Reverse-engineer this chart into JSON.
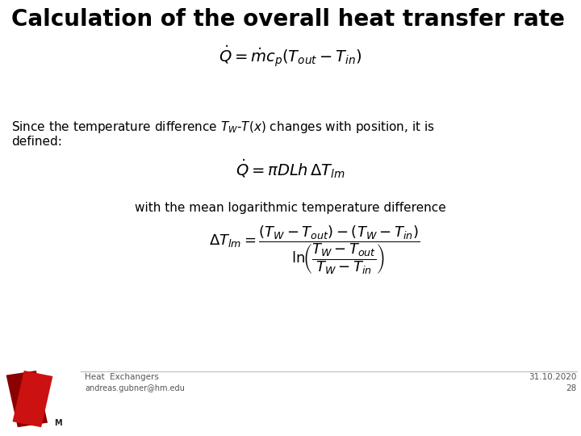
{
  "title": "Calculation of the overall heat transfer rate",
  "eq1": "$\\dot{Q} = \\dot{m}c_p\\left(T_{out} - T_{in}\\right)$",
  "text1_part1": "Since the temperature difference ",
  "text1_math": "$T_W$-$T(x)$",
  "text1_part2": " changes with position, it is",
  "text1_line2": "defined:",
  "eq2": "$\\dot{Q} = \\pi DLh \\, \\Delta T_{lm}$",
  "text2": "with the mean logarithmic temperature difference",
  "eq3": "$\\Delta T_{lm} = \\dfrac{\\left(T_W - T_{out}\\right) - \\left(T_W - T_{in}\\right)}{\\mathrm{ln}\\!\\left(\\dfrac{T_W - T_{out}}{T_W - T_{in}}\\right)}$",
  "footer_left_top": "Heat  Exchangers",
  "footer_left_bot": "andreas.gubner@hm.edu",
  "footer_right_top": "31.10.2020",
  "footer_right_bot": "28",
  "bg_color": "#ffffff",
  "title_color": "#000000",
  "text_color": "#000000",
  "footer_line_color": "#bbbbbb",
  "logo_dark": "#8b0000",
  "logo_light": "#cc1111"
}
